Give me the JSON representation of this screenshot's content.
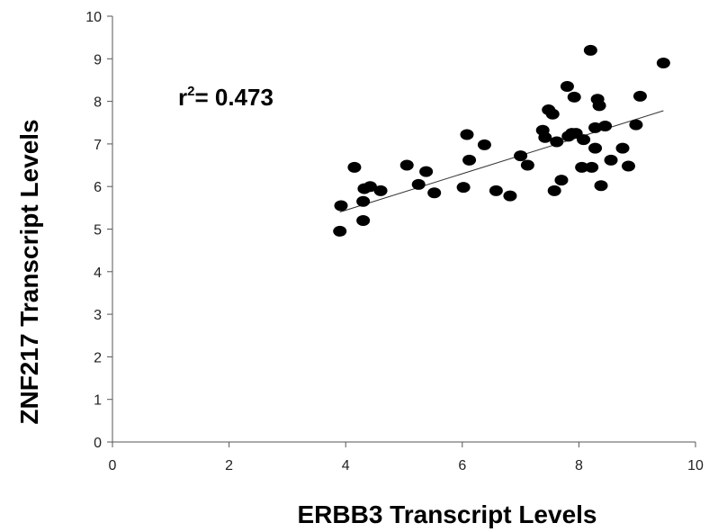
{
  "chart_data": {
    "type": "scatter",
    "title": "",
    "xlabel": "ERBB3 Transcript Levels",
    "ylabel": "ZNF217 Transcript Levels",
    "xlim": [
      0,
      10
    ],
    "ylim": [
      0,
      10
    ],
    "x_ticks": [
      "0",
      "2",
      "4",
      "6",
      "8",
      "10"
    ],
    "y_ticks": [
      "0",
      "1",
      "2",
      "3",
      "4",
      "5",
      "6",
      "7",
      "8",
      "9",
      "10"
    ],
    "grid": false,
    "legend": "none",
    "annotation": {
      "prefix": "r",
      "superscript": "2",
      "text": "= 0.473"
    },
    "point_color": "#000000",
    "trendline": {
      "x": [
        3.9,
        9.45
      ],
      "y": [
        5.4,
        7.78
      ]
    },
    "points": {
      "x": [
        3.9,
        3.92,
        4.15,
        4.3,
        4.3,
        4.32,
        4.42,
        4.6,
        5.05,
        5.25,
        5.38,
        5.52,
        6.02,
        6.08,
        6.12,
        6.38,
        6.58,
        6.82,
        7.0,
        7.12,
        7.38,
        7.42,
        7.48,
        7.55,
        7.58,
        7.62,
        7.7,
        7.8,
        7.82,
        7.88,
        7.92,
        7.95,
        8.05,
        8.08,
        8.2,
        8.22,
        8.28,
        8.28,
        8.32,
        8.35,
        8.38,
        8.45,
        8.55,
        8.75,
        8.85,
        8.98,
        9.05,
        9.45
      ],
      "y": [
        4.95,
        5.55,
        6.45,
        5.2,
        5.65,
        5.95,
        6.0,
        5.9,
        6.5,
        6.05,
        6.35,
        5.85,
        5.98,
        7.22,
        6.62,
        6.98,
        5.9,
        5.78,
        6.72,
        6.5,
        7.32,
        7.15,
        7.8,
        7.7,
        5.9,
        7.05,
        6.15,
        8.35,
        7.18,
        7.25,
        8.1,
        7.25,
        6.45,
        7.1,
        9.2,
        6.45,
        6.9,
        7.38,
        8.05,
        7.9,
        6.02,
        7.42,
        6.62,
        6.9,
        6.48,
        7.45,
        8.12,
        8.9
      ]
    }
  }
}
